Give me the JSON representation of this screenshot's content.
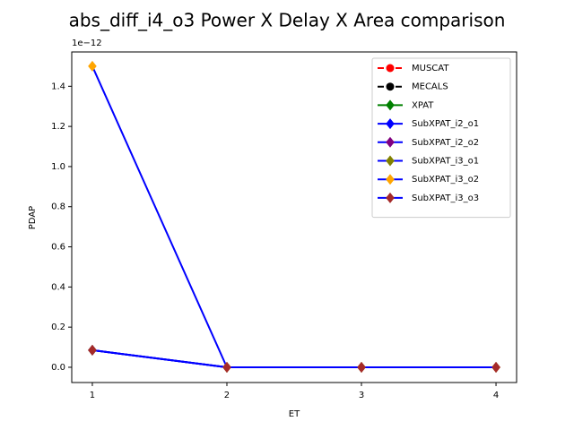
{
  "chart_data": {
    "type": "line",
    "title": "abs_diff_i4_o3 Power X Delay X Area comparison",
    "xlabel": "ET",
    "ylabel": "PDAP",
    "y_offset_label": "1e−12",
    "x": [
      1,
      2,
      3,
      4
    ],
    "xlim": [
      0.847,
      4.153
    ],
    "xticks": [
      1,
      2,
      3,
      4
    ],
    "ylim": [
      -0.076,
      1.571
    ],
    "yticks": [
      {
        "value": 0,
        "label": "0.0"
      },
      {
        "value": 0.2,
        "label": "0.2"
      },
      {
        "value": 0.4,
        "label": "0.4"
      },
      {
        "value": 0.6,
        "label": "0.6"
      },
      {
        "value": 0.8,
        "label": "0.8"
      },
      {
        "value": 1.0,
        "label": "1.0"
      },
      {
        "value": 1.2,
        "label": "1.2"
      },
      {
        "value": 1.4,
        "label": "1.4"
      }
    ],
    "legend": "upper right",
    "series": [
      {
        "name": "MUSCAT",
        "color": "red",
        "marker_color": "red",
        "marker": "circle",
        "dashed": true,
        "values": [
          null,
          null,
          null,
          null
        ]
      },
      {
        "name": "MECALS",
        "color": "black",
        "marker_color": "black",
        "marker": "circle",
        "dashed": true,
        "values": [
          null,
          null,
          null,
          null
        ]
      },
      {
        "name": "XPAT",
        "color": "green",
        "marker_color": "green",
        "marker": "diamond",
        "dashed": false,
        "values": [
          null,
          null,
          null,
          null
        ]
      },
      {
        "name": "SubXPAT_i2_o1",
        "color": "blue",
        "marker_color": "blue",
        "marker": "diamond",
        "dashed": false,
        "values": [
          0.085,
          0,
          0,
          0
        ]
      },
      {
        "name": "SubXPAT_i2_o2",
        "color": "blue",
        "marker_color": "purple",
        "marker": "diamond",
        "dashed": false,
        "values": [
          0.085,
          0,
          0,
          0
        ]
      },
      {
        "name": "SubXPAT_i3_o1",
        "color": "blue",
        "marker_color": "olive",
        "marker": "diamond",
        "dashed": false,
        "values": [
          0.085,
          0,
          0,
          0
        ]
      },
      {
        "name": "SubXPAT_i3_o2",
        "color": "blue",
        "marker_color": "orange",
        "marker": "diamond",
        "dashed": false,
        "values": [
          1.5,
          0,
          0,
          0
        ]
      },
      {
        "name": "SubXPAT_i3_o3",
        "color": "blue",
        "marker_color": "brown",
        "marker": "diamond",
        "dashed": false,
        "values": [
          0.085,
          0,
          0,
          0
        ]
      }
    ]
  }
}
